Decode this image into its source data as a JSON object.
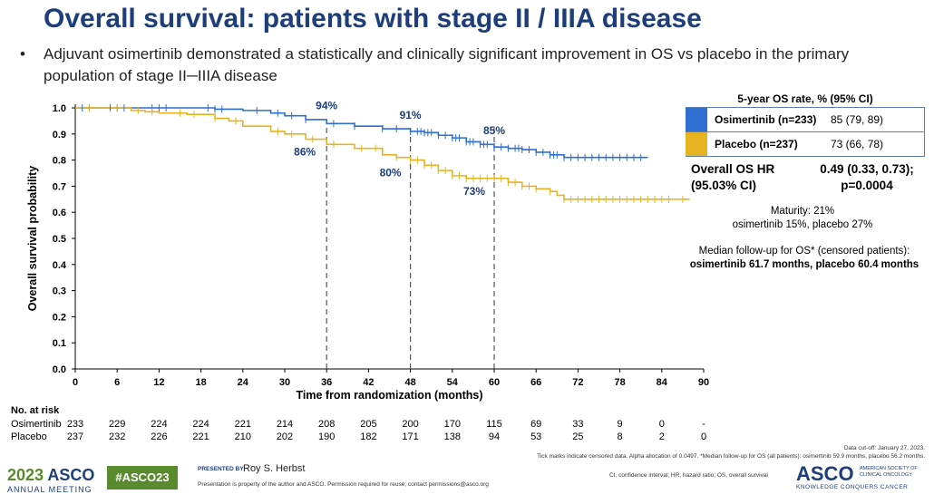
{
  "slide": {
    "title": "Overall survival: patients with stage II / IIIA disease",
    "bullet_marker": "•",
    "bullet": "Adjuvant osimertinib demonstrated a statistically and clinically significant improvement in OS vs placebo in the primary population of stage II─IIIA disease"
  },
  "colors": {
    "osimertinib": "#2e6fd1",
    "placebo": "#e6b422",
    "title": "#1d3e7a",
    "asco_green": "#5a8a2e"
  },
  "chart_data": {
    "type": "line",
    "xlabel": "Time from randomization (months)",
    "ylabel": "Overall survival probability",
    "xlim": [
      0,
      90
    ],
    "ylim": [
      0,
      1.0
    ],
    "x_ticks": [
      "0",
      "6",
      "12",
      "18",
      "24",
      "30",
      "36",
      "42",
      "48",
      "54",
      "60",
      "66",
      "72",
      "78",
      "84",
      "90"
    ],
    "y_ticks": [
      "0.0",
      "0.1",
      "0.2",
      "0.3",
      "0.4",
      "0.5",
      "0.6",
      "0.7",
      "0.8",
      "0.9",
      "1.0"
    ],
    "grid": false,
    "censored_marks": "tick marks",
    "reference_lines_x": [
      36,
      48,
      60
    ],
    "series": [
      {
        "name": "Osimertinib",
        "x": [
          0,
          4,
          8,
          12,
          16,
          20,
          24,
          28,
          30,
          33,
          36,
          40,
          44,
          48,
          50,
          52,
          54,
          56,
          58,
          60,
          62,
          64,
          66,
          68,
          70,
          72,
          76,
          82
        ],
        "y": [
          1.0,
          1.0,
          1.0,
          1.0,
          1.0,
          0.995,
          0.99,
          0.98,
          0.97,
          0.955,
          0.94,
          0.93,
          0.92,
          0.91,
          0.905,
          0.895,
          0.885,
          0.87,
          0.86,
          0.85,
          0.845,
          0.84,
          0.83,
          0.82,
          0.81,
          0.81,
          0.81,
          0.81
        ]
      },
      {
        "name": "Placebo",
        "x": [
          0,
          4,
          8,
          10,
          12,
          16,
          20,
          22,
          24,
          28,
          30,
          33,
          36,
          40,
          44,
          46,
          48,
          50,
          52,
          54,
          56,
          58,
          60,
          62,
          64,
          66,
          68,
          69,
          70,
          72,
          76,
          80,
          88
        ],
        "y": [
          1.0,
          1.0,
          0.99,
          0.985,
          0.98,
          0.975,
          0.96,
          0.95,
          0.93,
          0.91,
          0.9,
          0.88,
          0.86,
          0.845,
          0.82,
          0.81,
          0.8,
          0.78,
          0.76,
          0.74,
          0.73,
          0.73,
          0.73,
          0.715,
          0.7,
          0.69,
          0.68,
          0.665,
          0.65,
          0.65,
          0.65,
          0.65,
          0.65
        ]
      }
    ],
    "annotations": [
      {
        "text": "94%",
        "series": "Osimertinib",
        "x": 36
      },
      {
        "text": "91%",
        "series": "Osimertinib",
        "x": 48
      },
      {
        "text": "85%",
        "series": "Osimertinib",
        "x": 60
      },
      {
        "text": "86%",
        "series": "Placebo",
        "x": 36
      },
      {
        "text": "80%",
        "series": "Placebo",
        "x": 48
      },
      {
        "text": "73%",
        "series": "Placebo",
        "x": 60
      }
    ],
    "censored_x": {
      "osimertinib": [
        1,
        2,
        5,
        6,
        7,
        11,
        12,
        13,
        19,
        20,
        21,
        26,
        29,
        31,
        33,
        37,
        40,
        44,
        46,
        48,
        49,
        49.5,
        50,
        50.5,
        51,
        52,
        53,
        54,
        54.5,
        55,
        56,
        56.5,
        57,
        58,
        58.5,
        59,
        60,
        61,
        62,
        63,
        63.5,
        64,
        65,
        66,
        67,
        68,
        68.5,
        69,
        70,
        71,
        72,
        73,
        74,
        75,
        76,
        77,
        78,
        79,
        80,
        81
      ],
      "placebo": [
        2,
        6,
        9,
        11,
        15,
        17,
        20,
        23,
        29,
        31,
        34,
        37,
        41,
        43,
        46,
        48,
        49,
        50,
        51,
        52,
        53,
        54,
        55,
        56,
        57,
        58,
        59,
        60,
        61,
        62,
        63,
        64,
        65,
        66,
        68,
        70,
        71,
        72,
        73,
        74,
        75,
        76,
        77,
        78,
        79,
        80,
        81,
        82,
        83,
        84,
        85,
        87
      ]
    }
  },
  "os_table": {
    "header": "5-year OS rate, % (95% CI)",
    "rows": [
      {
        "label": "Osimertinib (n=233)",
        "value": "85 (79, 89)"
      },
      {
        "label": "Placebo (n=237)",
        "value": "73 (66, 78)"
      }
    ]
  },
  "hr": {
    "label_1": "Overall OS HR",
    "label_2": "(95.03% CI)",
    "value_1": "0.49 (0.33, 0.73);",
    "value_2": "p=0.0004"
  },
  "maturity": {
    "line1": "Maturity: 21%",
    "line2": "osimertinib 15%, placebo 27%"
  },
  "followup": {
    "line1": "Median follow-up  for OS* (censored patients):",
    "line2": "osimertinib  61.7 months, placebo 60.4 months"
  },
  "risk_table": {
    "title": "No. at risk",
    "rows": [
      {
        "label": "Osimertinib",
        "values": [
          "233",
          "229",
          "224",
          "224",
          "221",
          "214",
          "208",
          "205",
          "200",
          "170",
          "115",
          "69",
          "33",
          "9",
          "0",
          "-"
        ]
      },
      {
        "label": "Placebo",
        "values": [
          "237",
          "232",
          "226",
          "221",
          "210",
          "202",
          "190",
          "182",
          "171",
          "138",
          "94",
          "53",
          "25",
          "8",
          "2",
          "0"
        ]
      }
    ]
  },
  "footer": {
    "cutoff": "Data cut-off: January 27, 2023.",
    "tick_note": "Tick marks indicate censored data. Alpha allocation of 0.0497. *Median follow-up for OS (all patients): osimertinib 59.9 months, placebo 56.2 months.",
    "abbrev": "CI, confidence interval; HR, hazard ratio; OS, overall survival",
    "meeting_year": "2023",
    "meeting_brand": "ASCO",
    "meeting_sub": "ANNUAL MEETING",
    "hashtag": "#ASCO23",
    "presented_by": "PRESENTED BY:",
    "presenter": "Roy S. Herbst",
    "property": "Presentation is property of the author and ASCO. Permission required for reuse; contact permissions@asco.org",
    "asco_logo": "ASCO",
    "asco_society": "AMERICAN SOCIETY OF CLINICAL ONCOLOGY",
    "asco_tagline": "KNOWLEDGE CONQUERS CANCER"
  }
}
